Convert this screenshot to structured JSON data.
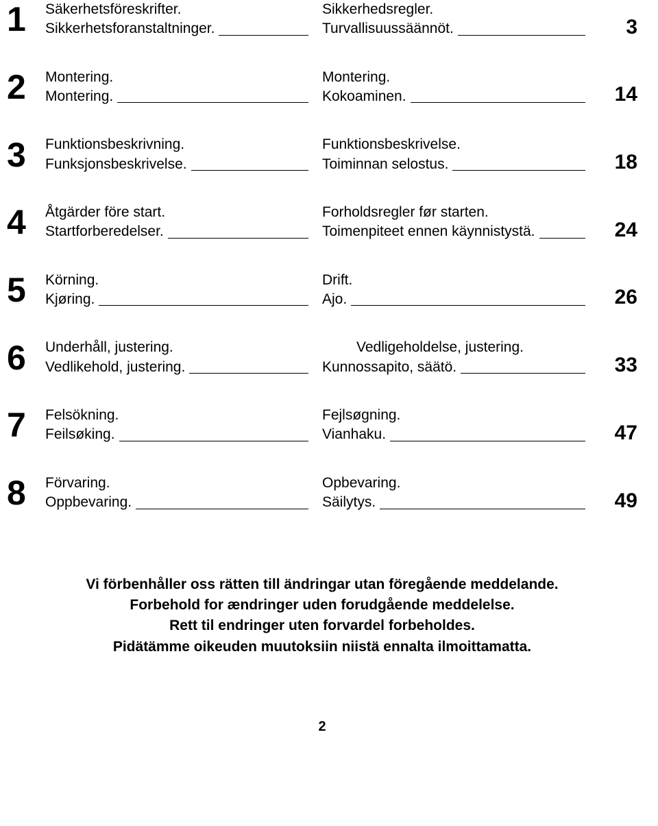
{
  "toc": [
    {
      "num": "1",
      "page": "3",
      "left": [
        "Säkerhetsföreskrifter.",
        "Sikkerhetsforanstaltninger."
      ],
      "right": [
        "Sikkerhedsregler.",
        "Turvallisuussäännöt."
      ]
    },
    {
      "num": "2",
      "page": "14",
      "left": [
        "Montering.",
        "Montering."
      ],
      "right": [
        "Montering.",
        "Kokoaminen."
      ]
    },
    {
      "num": "3",
      "page": "18",
      "left": [
        "Funktionsbeskrivning.",
        "Funksjonsbeskrivelse."
      ],
      "right": [
        "Funktionsbeskrivelse.",
        "Toiminnan selostus."
      ]
    },
    {
      "num": "4",
      "page": "24",
      "left": [
        "Åtgärder före start.",
        "Startforberedelser."
      ],
      "right": [
        "Forholdsregler før starten.",
        "Toimenpiteet ennen käynnistystä."
      ]
    },
    {
      "num": "5",
      "page": "26",
      "left": [
        "Körning.",
        "Kjøring."
      ],
      "right": [
        "Drift.",
        "Ajo."
      ]
    },
    {
      "num": "6",
      "page": "33",
      "left": [
        "Underhåll, justering.",
        "Vedlikehold, justering."
      ],
      "right_indent_first": true,
      "right": [
        "Vedligeholdelse, justering.",
        "Kunnossapito, säätö."
      ]
    },
    {
      "num": "7",
      "page": "47",
      "left": [
        "Felsökning.",
        "Feilsøking."
      ],
      "right": [
        "Fejlsøgning.",
        "Vianhaku."
      ]
    },
    {
      "num": "8",
      "page": "49",
      "left": [
        "Förvaring.",
        "Oppbevaring."
      ],
      "right": [
        "Opbevaring.",
        "Säilytys."
      ]
    }
  ],
  "footer": [
    "Vi  förbenhåller oss rätten till ändringar utan föregående meddelande.",
    "Forbehold for ændringer uden forudgående meddelelse.",
    "Rett til endringer uten forvardel forbeholdes.",
    "Pidätämme oikeuden muutoksiin niistä ennalta ilmoittamatta."
  ],
  "page_footer": "2",
  "style": {
    "text_color": "#000000",
    "bg_color": "#ffffff",
    "chapter_num_fontsize": 50,
    "page_num_fontsize": 30,
    "body_fontsize": 21,
    "footer_fontsize": 21,
    "rule_width": 1.5
  }
}
